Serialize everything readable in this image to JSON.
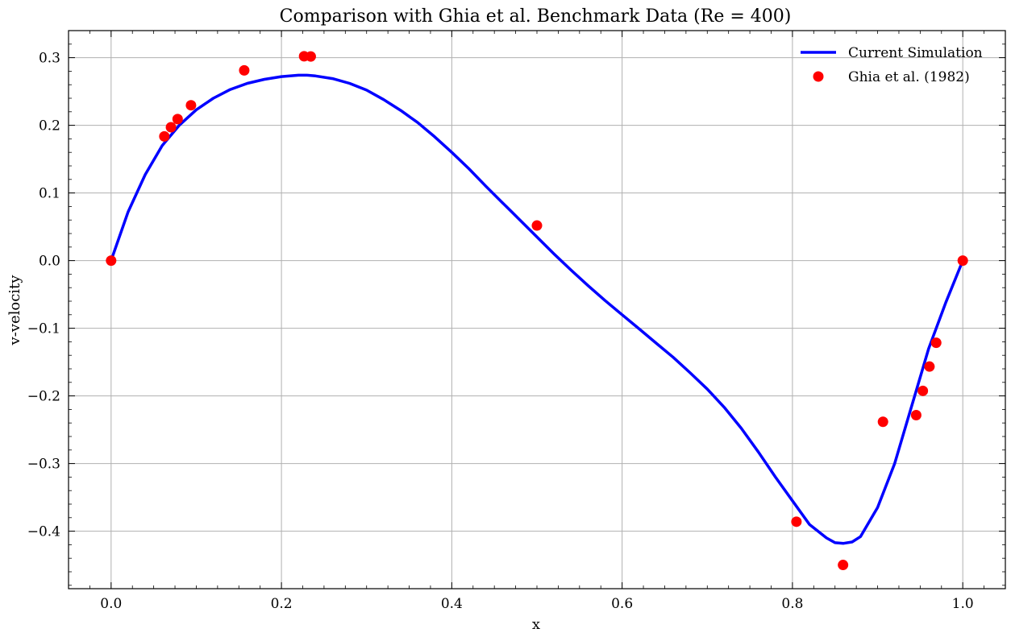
{
  "chart_data": {
    "type": "line",
    "title": "Comparison with Ghia et al. Benchmark Data (Re = 400)",
    "xlabel": "x",
    "ylabel": "v-velocity",
    "xlim": [
      -0.05,
      1.05
    ],
    "ylim": [
      -0.485,
      0.34
    ],
    "xticks": [
      0.0,
      0.2,
      0.4,
      0.6,
      0.8,
      1.0
    ],
    "xtick_labels": [
      "0.0",
      "0.2",
      "0.4",
      "0.6",
      "0.8",
      "1.0"
    ],
    "yticks": [
      -0.4,
      -0.3,
      -0.2,
      -0.1,
      0.0,
      0.1,
      0.2,
      0.3
    ],
    "ytick_labels": [
      "−0.4",
      "−0.3",
      "−0.2",
      "−0.1",
      "0.0",
      "0.1",
      "0.2",
      "0.3"
    ],
    "grid": true,
    "legend_position": "top-right",
    "series": [
      {
        "name": "Current Simulation",
        "kind": "line",
        "color": "#0000ff",
        "x": [
          0.0,
          0.02,
          0.04,
          0.06,
          0.08,
          0.1,
          0.12,
          0.14,
          0.16,
          0.18,
          0.2,
          0.22,
          0.23,
          0.24,
          0.26,
          0.28,
          0.3,
          0.32,
          0.34,
          0.36,
          0.38,
          0.4,
          0.42,
          0.44,
          0.46,
          0.48,
          0.5,
          0.52,
          0.54,
          0.56,
          0.58,
          0.6,
          0.62,
          0.64,
          0.66,
          0.68,
          0.7,
          0.72,
          0.74,
          0.76,
          0.78,
          0.8,
          0.82,
          0.84,
          0.85,
          0.86,
          0.87,
          0.88,
          0.9,
          0.92,
          0.94,
          0.96,
          0.98,
          1.0
        ],
        "y": [
          0.0,
          0.072,
          0.127,
          0.17,
          0.2,
          0.223,
          0.24,
          0.253,
          0.262,
          0.268,
          0.272,
          0.274,
          0.274,
          0.273,
          0.269,
          0.262,
          0.252,
          0.238,
          0.222,
          0.204,
          0.183,
          0.16,
          0.136,
          0.11,
          0.085,
          0.06,
          0.035,
          0.01,
          -0.014,
          -0.037,
          -0.059,
          -0.08,
          -0.101,
          -0.122,
          -0.143,
          -0.166,
          -0.19,
          -0.217,
          -0.248,
          -0.283,
          -0.32,
          -0.355,
          -0.39,
          -0.41,
          -0.417,
          -0.418,
          -0.416,
          -0.408,
          -0.365,
          -0.3,
          -0.215,
          -0.13,
          -0.062,
          0.0
        ]
      },
      {
        "name": "Ghia et al. (1982)",
        "kind": "scatter",
        "color": "#ff0000",
        "x": [
          0.0,
          0.0625,
          0.0703,
          0.0781,
          0.0938,
          0.1563,
          0.2266,
          0.2344,
          0.5,
          0.8047,
          0.8594,
          0.9063,
          0.9453,
          0.9531,
          0.9609,
          0.9688,
          1.0
        ],
        "y": [
          0.0,
          0.1836,
          0.19713,
          0.2092,
          0.22965,
          0.28124,
          0.30203,
          0.30174,
          0.05186,
          -0.38598,
          -0.44993,
          -0.23827,
          -0.22847,
          -0.19254,
          -0.15663,
          -0.12146,
          0.0
        ]
      }
    ]
  }
}
